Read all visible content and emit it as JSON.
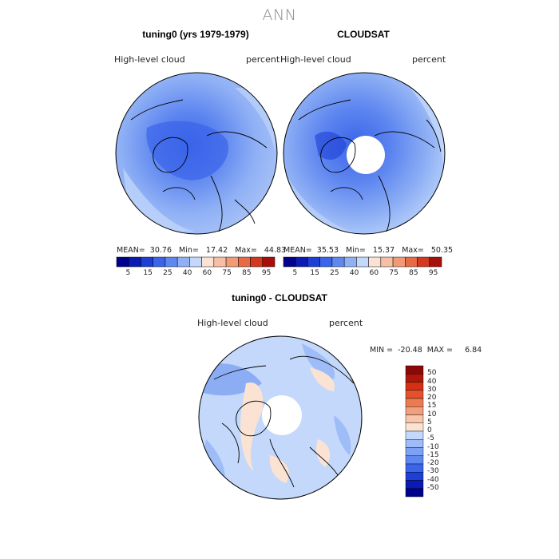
{
  "suptitle": "ANN",
  "colors": {
    "main_scale": [
      "#00008c",
      "#0a1bb4",
      "#1e3fd6",
      "#3a64ea",
      "#5f87f0",
      "#8fb0f5",
      "#c3d8fb",
      "#fbe2d2",
      "#f7c0a4",
      "#f29a75",
      "#e86a45",
      "#d4391f",
      "#a80f0a"
    ],
    "diff_scale": [
      "#00008c",
      "#0a1bb4",
      "#1e3fd6",
      "#3a64ea",
      "#5f87f0",
      "#7ea2f3",
      "#9ebcf7",
      "#c3d8fb",
      "#fbe3d3",
      "#f8c6ab",
      "#f2a07c",
      "#ec7b52",
      "#e4522c",
      "#d43015",
      "#b0170b",
      "#8c0808"
    ],
    "land_outline": "#000000"
  },
  "panels": [
    {
      "title": "tuning0 (yrs 1979-1979)",
      "variable": "High-level cloud",
      "units": "percent",
      "stats": "MEAN=  30.76   Min=   17.42   Max=   44.83"
    },
    {
      "title": "CLOUDSAT",
      "variable": "High-level cloud",
      "units": "percent",
      "stats": "MEAN=  35.53   Min=   15.37   Max=   50.35"
    }
  ],
  "main_colorbar_ticks": [
    "5",
    "15",
    "25",
    "40",
    "60",
    "75",
    "85",
    "95"
  ],
  "diff": {
    "title": "tuning0 - CLOUDSAT",
    "variable": "High-level cloud",
    "units": "percent",
    "stats": "MIN =  -20.48  MAX =     6.84",
    "ticks": [
      "50",
      "40",
      "30",
      "20",
      "15",
      "10",
      "5",
      "0",
      "-5",
      "-10",
      "-15",
      "-20",
      "-30",
      "-40",
      "-50"
    ]
  }
}
